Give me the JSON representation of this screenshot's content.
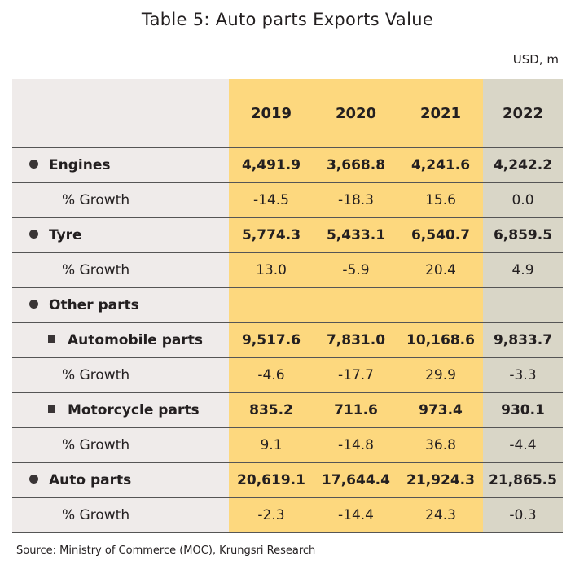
{
  "title": "Table 5: Auto parts Exports Value",
  "unit": "USD, m",
  "headers": [
    "2019",
    "2020",
    "2021",
    "2022"
  ],
  "rows": [
    {
      "label": "Engines",
      "values": [
        "4,491.9",
        "3,668.8",
        "4,241.6",
        "4,242.2"
      ]
    },
    {
      "label": "% Growth",
      "values": [
        "-14.5",
        "-18.3",
        "15.6",
        "0.0"
      ]
    },
    {
      "label": "Tyre",
      "values": [
        "5,774.3",
        "5,433.1",
        "6,540.7",
        "6,859.5"
      ]
    },
    {
      "label": "% Growth",
      "values": [
        "13.0",
        "-5.9",
        "20.4",
        "4.9"
      ]
    },
    {
      "label": "Other parts",
      "values": [
        "",
        "",
        "",
        ""
      ]
    },
    {
      "label": "Automobile parts",
      "values": [
        "9,517.6",
        "7,831.0",
        "10,168.6",
        "9,833.7"
      ]
    },
    {
      "label": "% Growth",
      "values": [
        "-4.6",
        "-17.7",
        "29.9",
        "-3.3"
      ]
    },
    {
      "label": "Motorcycle parts",
      "values": [
        "835.2",
        "711.6",
        "973.4",
        "930.1"
      ]
    },
    {
      "label": "% Growth",
      "values": [
        "9.1",
        "-14.8",
        "36.8",
        "-4.4"
      ]
    },
    {
      "label": "Auto parts",
      "values": [
        "20,619.1",
        "17,644.4",
        "21,924.3",
        "21,865.5"
      ]
    },
    {
      "label": "% Growth",
      "values": [
        "-2.3",
        "-14.4",
        "24.3",
        "-0.3"
      ]
    }
  ],
  "source": "Source: Ministry of Commerce (MOC), Krungsri Research",
  "colors": {
    "label_bg": "#efebea",
    "year_bg": "#fdd87e",
    "forecast_bg": "#d9d6c7"
  }
}
